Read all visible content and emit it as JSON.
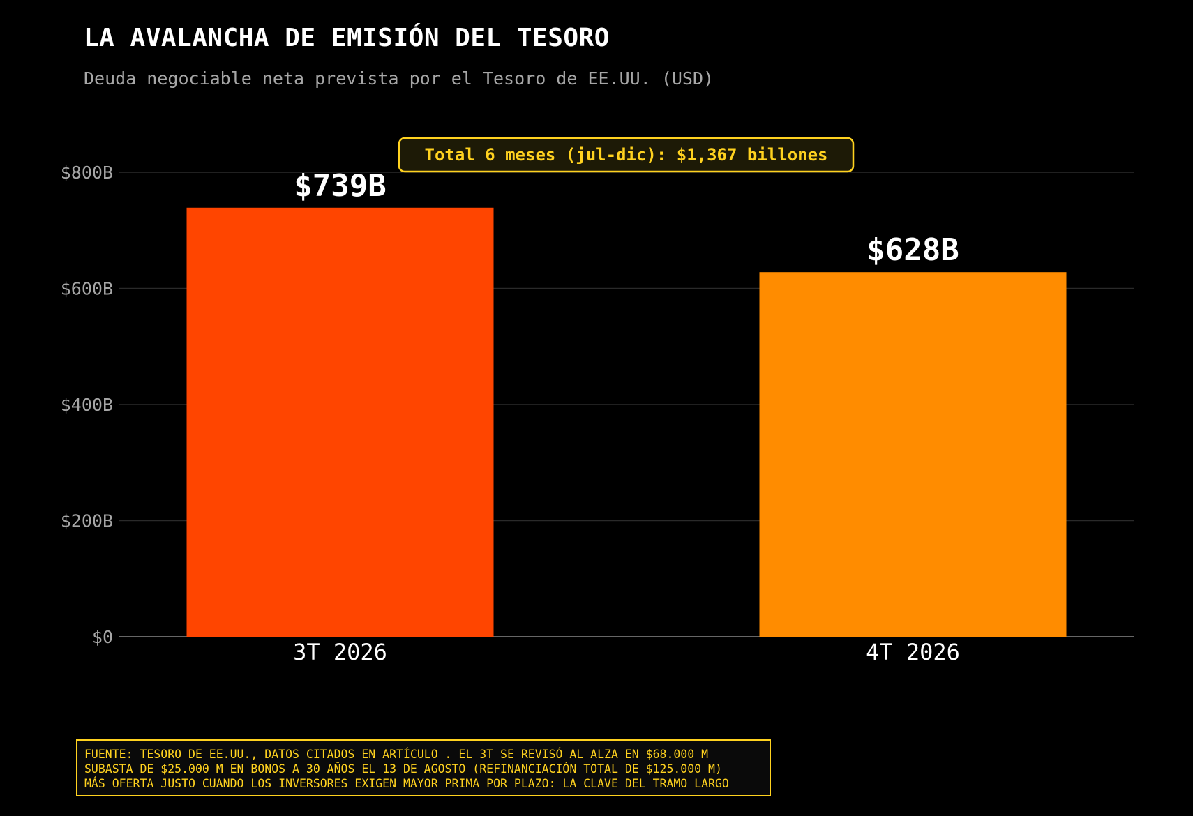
{
  "header": {
    "title": "LA AVALANCHA DE EMISIÓN DEL TESORO",
    "subtitle": "Deuda negociable neta prevista por el Tesoro de EE.UU. (USD)"
  },
  "chart_data": {
    "type": "bar",
    "categories": [
      "3T 2026",
      "4T 2026"
    ],
    "values": [
      739,
      628
    ],
    "value_labels": [
      "$739B",
      "$628B"
    ],
    "colors": [
      "#ff4500",
      "#ff8c00"
    ],
    "ylim": [
      0,
      800
    ],
    "yticks": [
      0,
      200,
      400,
      600,
      800
    ],
    "ytick_labels": [
      "$0",
      "$200B",
      "$400B",
      "$600B",
      "$800B"
    ],
    "grid": true,
    "xlabel": "",
    "ylabel": "",
    "annotation": "Total 6 meses (jul-dic): $1,367 billones"
  },
  "footnote": {
    "lines": [
      "FUENTE: TESORO DE EE.UU., DATOS CITADOS EN ARTÍCULO . EL 3T SE REVISÓ AL ALZA EN $68.000 M",
      "SUBASTA DE $25.000 M EN BONOS A 30 AÑOS EL 13 DE AGOSTO (REFINANCIACIÓN TOTAL DE $125.000 M)",
      "MÁS OFERTA JUSTO CUANDO LOS INVERSORES EXIGEN MAYOR PRIMA POR PLAZO: LA CLAVE DEL TRAMO LARGO"
    ]
  },
  "colors": {
    "background": "#000000",
    "accent": "#ffd21f",
    "grid": "#2a2a2a",
    "axis": "#666666",
    "tick_text": "#a6a6a6"
  }
}
